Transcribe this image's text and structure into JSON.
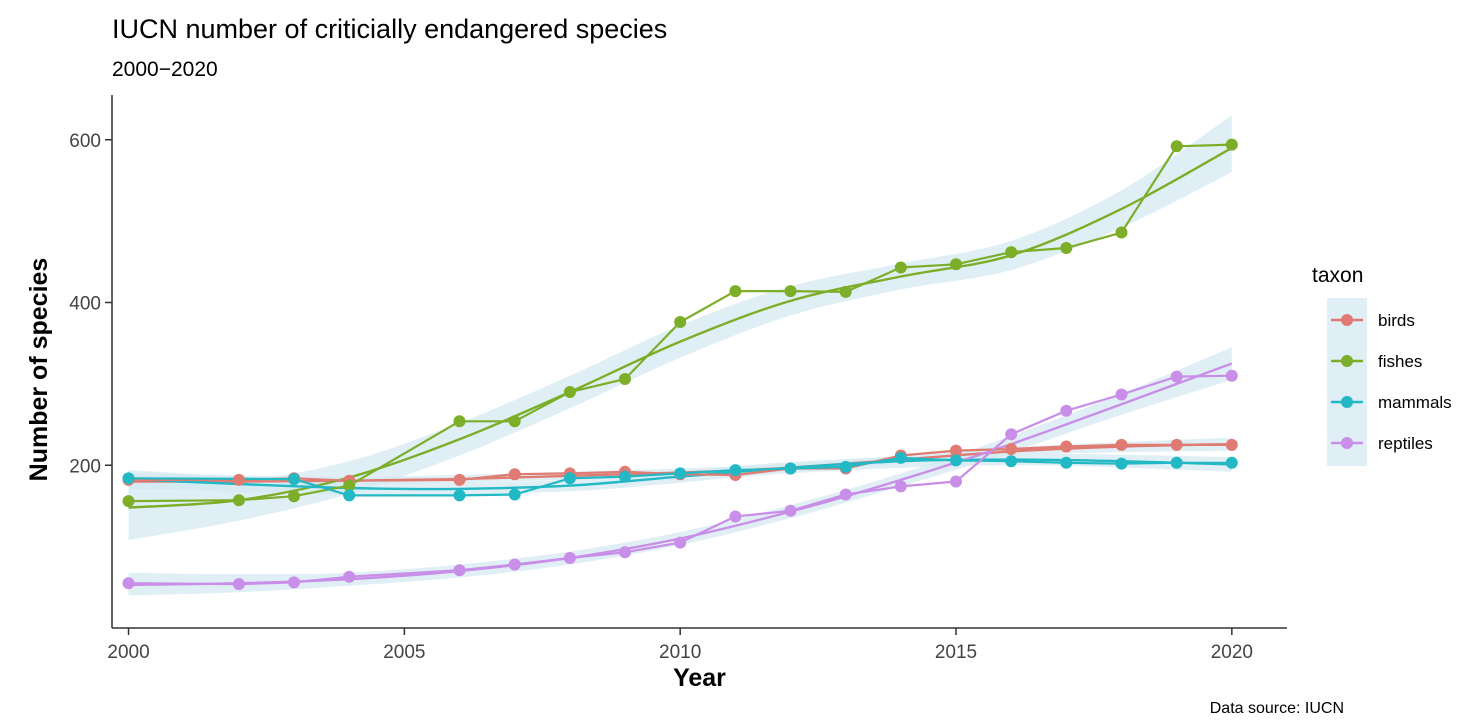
{
  "chart_data": {
    "type": "line",
    "title": "IUCN number of criticially endangered species",
    "subtitle": "2000−2020",
    "caption": "Data source: IUCN",
    "xlabel": "Year",
    "ylabel": "Number of species",
    "xlim": [
      1999.7,
      2021
    ],
    "ylim": [
      0,
      655
    ],
    "x_ticks": [
      2000,
      2005,
      2010,
      2015,
      2020
    ],
    "y_ticks": [
      200,
      400,
      600
    ],
    "grid": false,
    "smoothing": "loess trend line with confidence band",
    "band_color": "#d6e9f1",
    "legend": {
      "title": "taxon",
      "position": "right"
    },
    "series": [
      {
        "name": "birds",
        "color": "#e07b73",
        "points": [
          [
            2000,
            182
          ],
          [
            2002,
            182
          ],
          [
            2003,
            184
          ],
          [
            2004,
            181
          ],
          [
            2006,
            182
          ],
          [
            2007,
            189
          ],
          [
            2008,
            190
          ],
          [
            2009,
            192
          ],
          [
            2010,
            189
          ],
          [
            2011,
            188
          ],
          [
            2012,
            196
          ],
          [
            2013,
            196
          ],
          [
            2014,
            212
          ],
          [
            2015,
            218
          ],
          [
            2016,
            220
          ],
          [
            2017,
            223
          ],
          [
            2018,
            225
          ],
          [
            2019,
            225
          ],
          [
            2020,
            225
          ]
        ],
        "trend": [
          [
            2000,
            180
          ],
          [
            2002,
            180
          ],
          [
            2004,
            181
          ],
          [
            2006,
            183
          ],
          [
            2008,
            187
          ],
          [
            2010,
            191
          ],
          [
            2012,
            197
          ],
          [
            2014,
            207
          ],
          [
            2016,
            217
          ],
          [
            2018,
            223
          ],
          [
            2020,
            226
          ]
        ],
        "band": [
          [
            2000,
            170,
            190
          ],
          [
            2004,
            176,
            186
          ],
          [
            2008,
            182,
            192
          ],
          [
            2012,
            192,
            202
          ],
          [
            2016,
            212,
            222
          ],
          [
            2020,
            218,
            234
          ]
        ]
      },
      {
        "name": "fishes",
        "color": "#7cae29",
        "points": [
          [
            2000,
            156
          ],
          [
            2002,
            157
          ],
          [
            2003,
            162
          ],
          [
            2004,
            175
          ],
          [
            2006,
            254
          ],
          [
            2007,
            254
          ],
          [
            2008,
            290
          ],
          [
            2009,
            306
          ],
          [
            2010,
            376
          ],
          [
            2011,
            414
          ],
          [
            2012,
            414
          ],
          [
            2013,
            413
          ],
          [
            2014,
            443
          ],
          [
            2015,
            447
          ],
          [
            2016,
            462
          ],
          [
            2017,
            467
          ],
          [
            2018,
            486
          ],
          [
            2019,
            592
          ],
          [
            2020,
            594
          ]
        ],
        "trend": [
          [
            2000,
            148
          ],
          [
            2002,
            157
          ],
          [
            2004,
            185
          ],
          [
            2006,
            232
          ],
          [
            2008,
            290
          ],
          [
            2010,
            352
          ],
          [
            2012,
            402
          ],
          [
            2014,
            432
          ],
          [
            2016,
            458
          ],
          [
            2018,
            515
          ],
          [
            2020,
            590
          ]
        ],
        "band": [
          [
            2000,
            108,
            188
          ],
          [
            2002,
            132,
            182
          ],
          [
            2004,
            165,
            205
          ],
          [
            2006,
            212,
            252
          ],
          [
            2008,
            270,
            310
          ],
          [
            2010,
            332,
            372
          ],
          [
            2012,
            384,
            420
          ],
          [
            2014,
            416,
            448
          ],
          [
            2016,
            440,
            476
          ],
          [
            2018,
            492,
            538
          ],
          [
            2020,
            560,
            630
          ]
        ]
      },
      {
        "name": "mammals",
        "color": "#22b8c4",
        "points": [
          [
            2000,
            184
          ],
          [
            2003,
            183
          ],
          [
            2004,
            163
          ],
          [
            2006,
            163
          ],
          [
            2007,
            164
          ],
          [
            2008,
            184
          ],
          [
            2009,
            186
          ],
          [
            2010,
            190
          ],
          [
            2011,
            194
          ],
          [
            2012,
            196
          ],
          [
            2013,
            198
          ],
          [
            2014,
            209
          ],
          [
            2015,
            206
          ],
          [
            2016,
            205
          ],
          [
            2017,
            203
          ],
          [
            2018,
            202
          ],
          [
            2019,
            203
          ],
          [
            2020,
            203
          ]
        ],
        "trend": [
          [
            2000,
            183
          ],
          [
            2002,
            177
          ],
          [
            2004,
            172
          ],
          [
            2006,
            171
          ],
          [
            2008,
            175
          ],
          [
            2010,
            186
          ],
          [
            2012,
            197
          ],
          [
            2014,
            205
          ],
          [
            2016,
            207
          ],
          [
            2018,
            205
          ],
          [
            2020,
            201
          ]
        ],
        "band": [
          [
            2000,
            172,
            194
          ],
          [
            2004,
            164,
            180
          ],
          [
            2008,
            168,
            182
          ],
          [
            2012,
            190,
            204
          ],
          [
            2016,
            200,
            214
          ],
          [
            2020,
            192,
            210
          ]
        ]
      },
      {
        "name": "reptiles",
        "color": "#c98ee8",
        "points": [
          [
            2000,
            55
          ],
          [
            2002,
            54
          ],
          [
            2003,
            56
          ],
          [
            2004,
            63
          ],
          [
            2006,
            71
          ],
          [
            2007,
            78
          ],
          [
            2008,
            86
          ],
          [
            2009,
            93
          ],
          [
            2010,
            105
          ],
          [
            2011,
            137
          ],
          [
            2012,
            144
          ],
          [
            2013,
            164
          ],
          [
            2014,
            174
          ],
          [
            2015,
            180
          ],
          [
            2016,
            238
          ],
          [
            2017,
            267
          ],
          [
            2018,
            287
          ],
          [
            2019,
            309
          ],
          [
            2020,
            310
          ]
        ],
        "trend": [
          [
            2000,
            53
          ],
          [
            2002,
            55
          ],
          [
            2004,
            60
          ],
          [
            2006,
            70
          ],
          [
            2008,
            86
          ],
          [
            2010,
            110
          ],
          [
            2012,
            143
          ],
          [
            2014,
            182
          ],
          [
            2016,
            226
          ],
          [
            2018,
            275
          ],
          [
            2020,
            325
          ]
        ],
        "band": [
          [
            2000,
            40,
            68
          ],
          [
            2002,
            44,
            66
          ],
          [
            2004,
            52,
            68
          ],
          [
            2006,
            62,
            78
          ],
          [
            2008,
            78,
            94
          ],
          [
            2010,
            102,
            118
          ],
          [
            2012,
            135,
            151
          ],
          [
            2014,
            174,
            190
          ],
          [
            2016,
            216,
            236
          ],
          [
            2018,
            262,
            288
          ],
          [
            2020,
            305,
            345
          ]
        ]
      }
    ]
  }
}
